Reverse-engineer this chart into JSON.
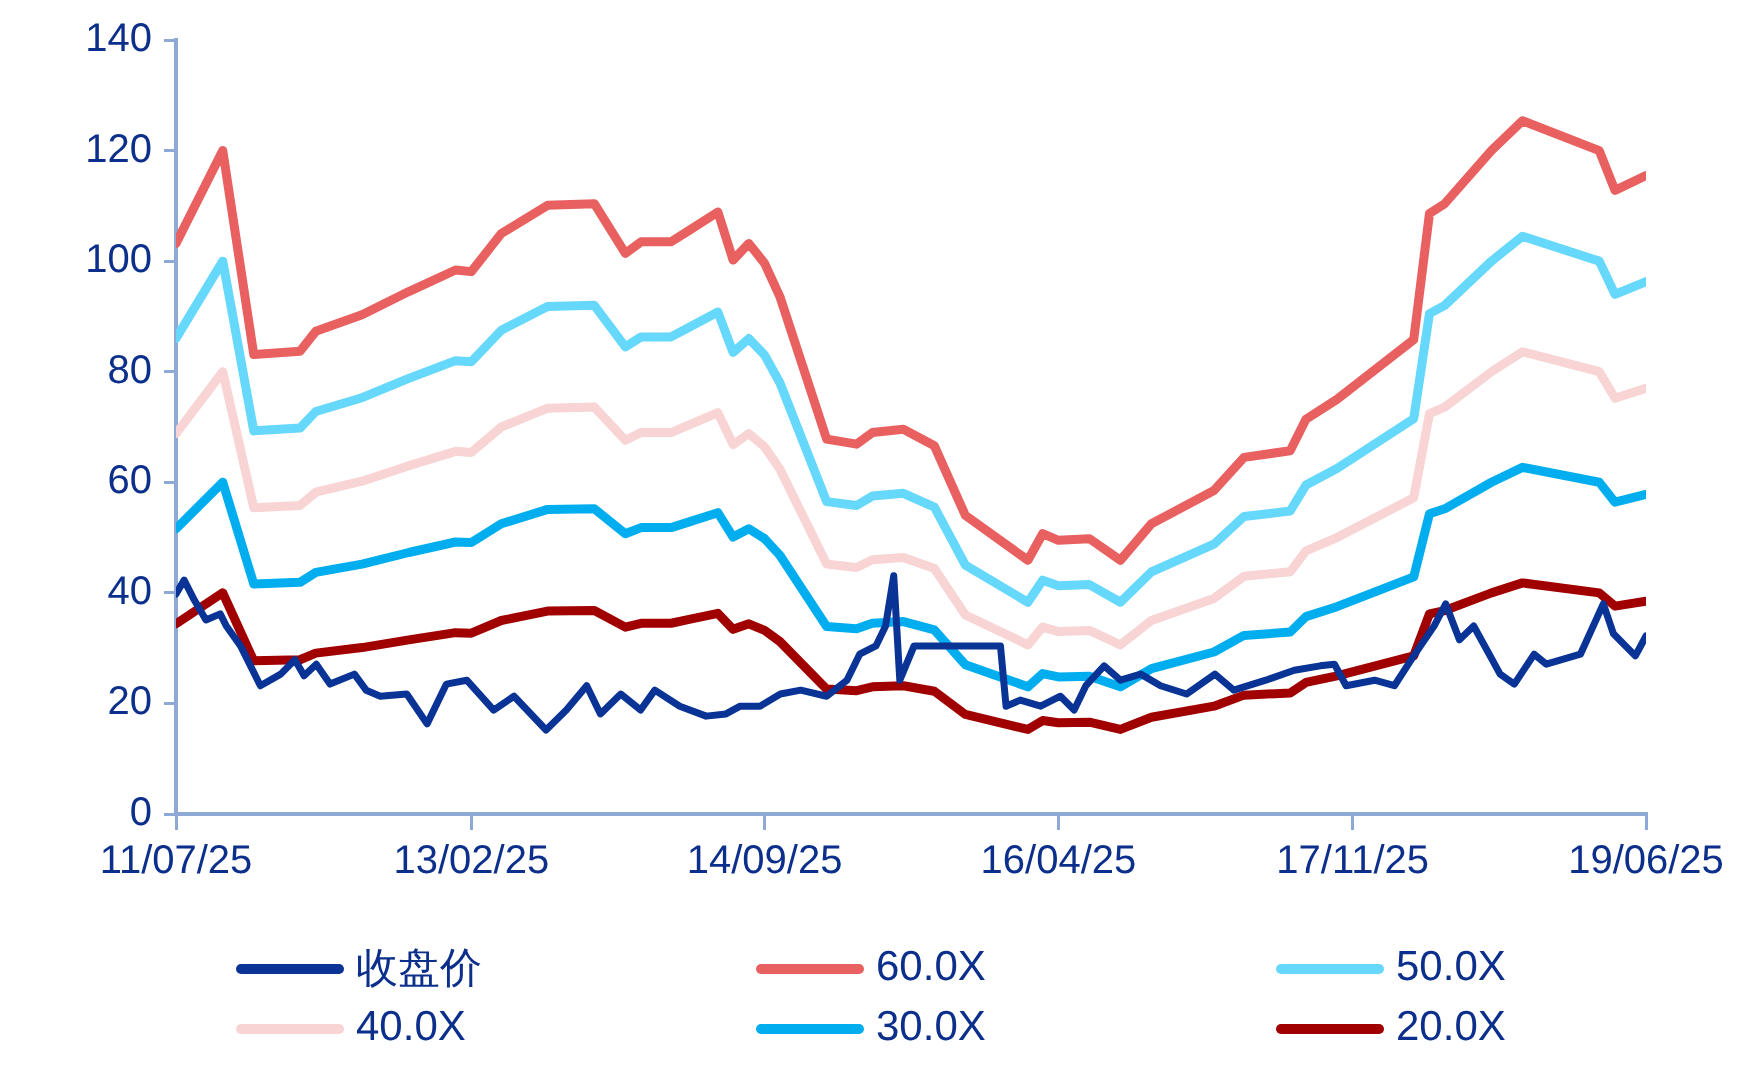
{
  "chart_data": {
    "type": "line",
    "x": [
      "2011-07-25",
      "2011-10-25",
      "2011-12-25",
      "2012-03-25",
      "2012-04-25",
      "2012-07-25",
      "2012-10-25",
      "2013-01-25",
      "2013-02-25",
      "2013-04-25",
      "2013-07-25",
      "2013-10-25",
      "2013-12-25",
      "2014-01-25",
      "2014-03-25",
      "2014-04-25",
      "2014-06-25",
      "2014-07-25",
      "2014-08-25",
      "2014-09-25",
      "2014-10-25",
      "2015-01-25",
      "2015-03-25",
      "2015-04-25",
      "2015-06-25",
      "2015-08-25",
      "2015-10-25",
      "2016-02-25",
      "2016-03-25",
      "2016-04-25",
      "2016-06-25",
      "2016-08-25",
      "2016-10-25",
      "2017-02-25",
      "2017-04-25",
      "2017-07-25",
      "2017-08-25",
      "2017-10-25",
      "2018-03-25",
      "2018-04-25",
      "2018-05-25",
      "2018-08-25",
      "2018-10-25",
      "2019-03-25",
      "2019-04-25",
      "2019-06-25"
    ],
    "series": [
      {
        "name": "收盘价",
        "color": "#0a3396",
        "x": [
          "2011-07-25",
          "2011-08-10",
          "2011-08-30",
          "2011-09-22",
          "2011-10-20",
          "2011-11-01",
          "2011-11-29",
          "2012-01-07",
          "2012-02-16",
          "2012-03-15",
          "2012-04-02",
          "2012-04-26",
          "2012-05-23",
          "2012-07-10",
          "2012-08-02",
          "2012-08-30",
          "2012-10-21",
          "2012-11-30",
          "2013-01-07",
          "2013-02-16",
          "2013-04-10",
          "2013-05-20",
          "2013-07-22",
          "2013-08-31",
          "2013-10-10",
          "2013-11-06",
          "2013-12-16",
          "2014-01-24",
          "2014-02-21",
          "2014-04-11",
          "2014-06-02",
          "2014-07-11",
          "2014-08-08",
          "2014-09-16",
          "2014-10-26",
          "2014-12-05",
          "2015-01-25",
          "2015-03-06",
          "2015-03-31",
          "2015-05-02",
          "2015-05-21",
          "2015-06-06",
          "2015-06-18",
          "2015-07-16",
          "2016-01-02",
          "2016-01-13",
          "2016-02-10",
          "2016-03-21",
          "2016-04-29",
          "2016-05-26",
          "2016-06-18",
          "2016-07-24",
          "2016-08-25",
          "2016-10-04",
          "2016-11-12",
          "2017-01-02",
          "2017-02-27",
          "2017-04-05",
          "2017-06-07",
          "2017-08-02",
          "2017-09-22",
          "2017-10-20",
          "2017-11-12",
          "2018-01-07",
          "2018-02-15",
          "2018-03-25",
          "2018-05-04",
          "2018-05-27",
          "2018-06-23",
          "2018-07-21",
          "2018-09-11",
          "2018-10-09",
          "2018-11-17",
          "2018-12-11",
          "2019-02-16",
          "2019-04-02",
          "2019-04-22",
          "2019-06-04",
          "2019-06-25"
        ],
        "values": [
          39.8,
          42.3,
          38.7,
          35.1,
          36.2,
          34.0,
          30.4,
          23.2,
          25.3,
          27.9,
          25.0,
          27.1,
          23.5,
          25.3,
          22.4,
          21.3,
          21.7,
          16.3,
          23.5,
          24.2,
          18.8,
          21.3,
          15.2,
          18.8,
          23.2,
          18.1,
          21.7,
          18.8,
          22.4,
          19.5,
          17.7,
          18.1,
          19.5,
          19.5,
          21.7,
          22.4,
          21.3,
          24.2,
          28.9,
          30.4,
          34.0,
          43.1,
          24.2,
          30.4,
          30.4,
          19.5,
          20.6,
          19.5,
          21.3,
          18.8,
          23.2,
          26.8,
          24.2,
          25.3,
          23.2,
          21.7,
          25.3,
          22.4,
          24.2,
          26.0,
          26.8,
          27.1,
          23.2,
          24.2,
          23.2,
          28.6,
          34.0,
          38.0,
          31.5,
          34.0,
          25.3,
          23.5,
          28.9,
          27.1,
          28.9,
          38.0,
          32.6,
          28.6,
          32.2
        ]
      },
      {
        "name": "60.0X",
        "color": "#e8605f",
        "values": [
          103.2,
          120.0,
          83.1,
          83.7,
          87.3,
          90.3,
          94.5,
          98.4,
          98.1,
          105.0,
          110.1,
          110.4,
          101.4,
          103.5,
          103.5,
          105.3,
          108.9,
          100.2,
          103.2,
          99.6,
          93.6,
          67.8,
          66.9,
          69.0,
          69.6,
          66.6,
          54.0,
          45.9,
          50.7,
          49.5,
          49.8,
          45.9,
          52.5,
          58.5,
          64.5,
          65.7,
          71.4,
          75.0,
          85.8,
          108.6,
          110.4,
          120.0,
          125.4,
          120.0,
          112.8,
          115.5
        ]
      },
      {
        "name": "50.0X",
        "color": "#66d8fb",
        "values": [
          86.0,
          100.0,
          69.3,
          69.8,
          72.8,
          75.3,
          78.8,
          82.0,
          81.8,
          87.5,
          91.8,
          92.0,
          84.5,
          86.3,
          86.3,
          87.8,
          90.8,
          83.5,
          86.0,
          83.0,
          78.0,
          56.5,
          55.8,
          57.5,
          58.0,
          55.5,
          45.0,
          38.3,
          42.3,
          41.3,
          41.5,
          38.3,
          43.8,
          48.8,
          53.8,
          54.8,
          59.5,
          62.5,
          71.5,
          90.5,
          92.0,
          100.0,
          104.5,
          100.0,
          94.0,
          96.3
        ]
      },
      {
        "name": "40.0X",
        "color": "#f8d4d4",
        "values": [
          68.8,
          80.0,
          55.4,
          55.8,
          58.2,
          60.2,
          63.0,
          65.6,
          65.4,
          70.0,
          73.4,
          73.6,
          67.6,
          69.0,
          69.0,
          70.2,
          72.6,
          66.8,
          68.8,
          66.4,
          62.4,
          45.2,
          44.6,
          46.0,
          46.4,
          44.4,
          36.0,
          30.6,
          33.8,
          33.0,
          33.2,
          30.6,
          35.0,
          39.0,
          43.0,
          43.8,
          47.6,
          50.0,
          57.2,
          72.4,
          73.6,
          80.0,
          83.6,
          80.0,
          75.2,
          77.0
        ]
      },
      {
        "name": "30.0X",
        "color": "#00aeef",
        "values": [
          51.6,
          60.0,
          41.6,
          41.9,
          43.7,
          45.2,
          47.3,
          49.2,
          49.1,
          52.5,
          55.1,
          55.2,
          50.7,
          51.8,
          51.8,
          52.7,
          54.5,
          50.1,
          51.6,
          49.8,
          46.8,
          33.9,
          33.5,
          34.5,
          34.8,
          33.3,
          27.0,
          23.0,
          25.4,
          24.8,
          24.9,
          23.0,
          26.3,
          29.3,
          32.3,
          32.9,
          35.7,
          37.5,
          42.9,
          54.3,
          55.2,
          60.0,
          62.7,
          60.0,
          56.4,
          57.8
        ]
      },
      {
        "name": "20.0X",
        "color": "#a00000",
        "values": [
          34.4,
          40.0,
          27.7,
          27.9,
          29.1,
          30.1,
          31.5,
          32.8,
          32.7,
          35.0,
          36.7,
          36.8,
          33.8,
          34.5,
          34.5,
          35.1,
          36.3,
          33.4,
          34.4,
          33.2,
          31.2,
          22.6,
          22.3,
          23.0,
          23.2,
          22.2,
          18.0,
          15.3,
          16.9,
          16.5,
          16.6,
          15.3,
          17.5,
          19.5,
          21.5,
          21.9,
          23.8,
          25.0,
          28.6,
          36.2,
          36.8,
          40.0,
          41.8,
          40.0,
          37.6,
          38.5
        ]
      }
    ],
    "xlim": [
      "2011-07-25",
      "2019-06-25"
    ],
    "xticks": [
      {
        "value": "2011-07-25",
        "label": "11/07/25"
      },
      {
        "value": "2013-02-25",
        "label": "13/02/25"
      },
      {
        "value": "2014-09-25",
        "label": "14/09/25"
      },
      {
        "value": "2016-04-25",
        "label": "16/04/25"
      },
      {
        "value": "2017-11-25",
        "label": "17/11/25"
      },
      {
        "value": "2019-06-25",
        "label": "19/06/25"
      }
    ],
    "ylim": [
      0,
      140
    ],
    "yticks": [
      0,
      20,
      40,
      60,
      80,
      100,
      120,
      140
    ],
    "legend": "bottom",
    "marker": "none",
    "line_style": "solid"
  }
}
